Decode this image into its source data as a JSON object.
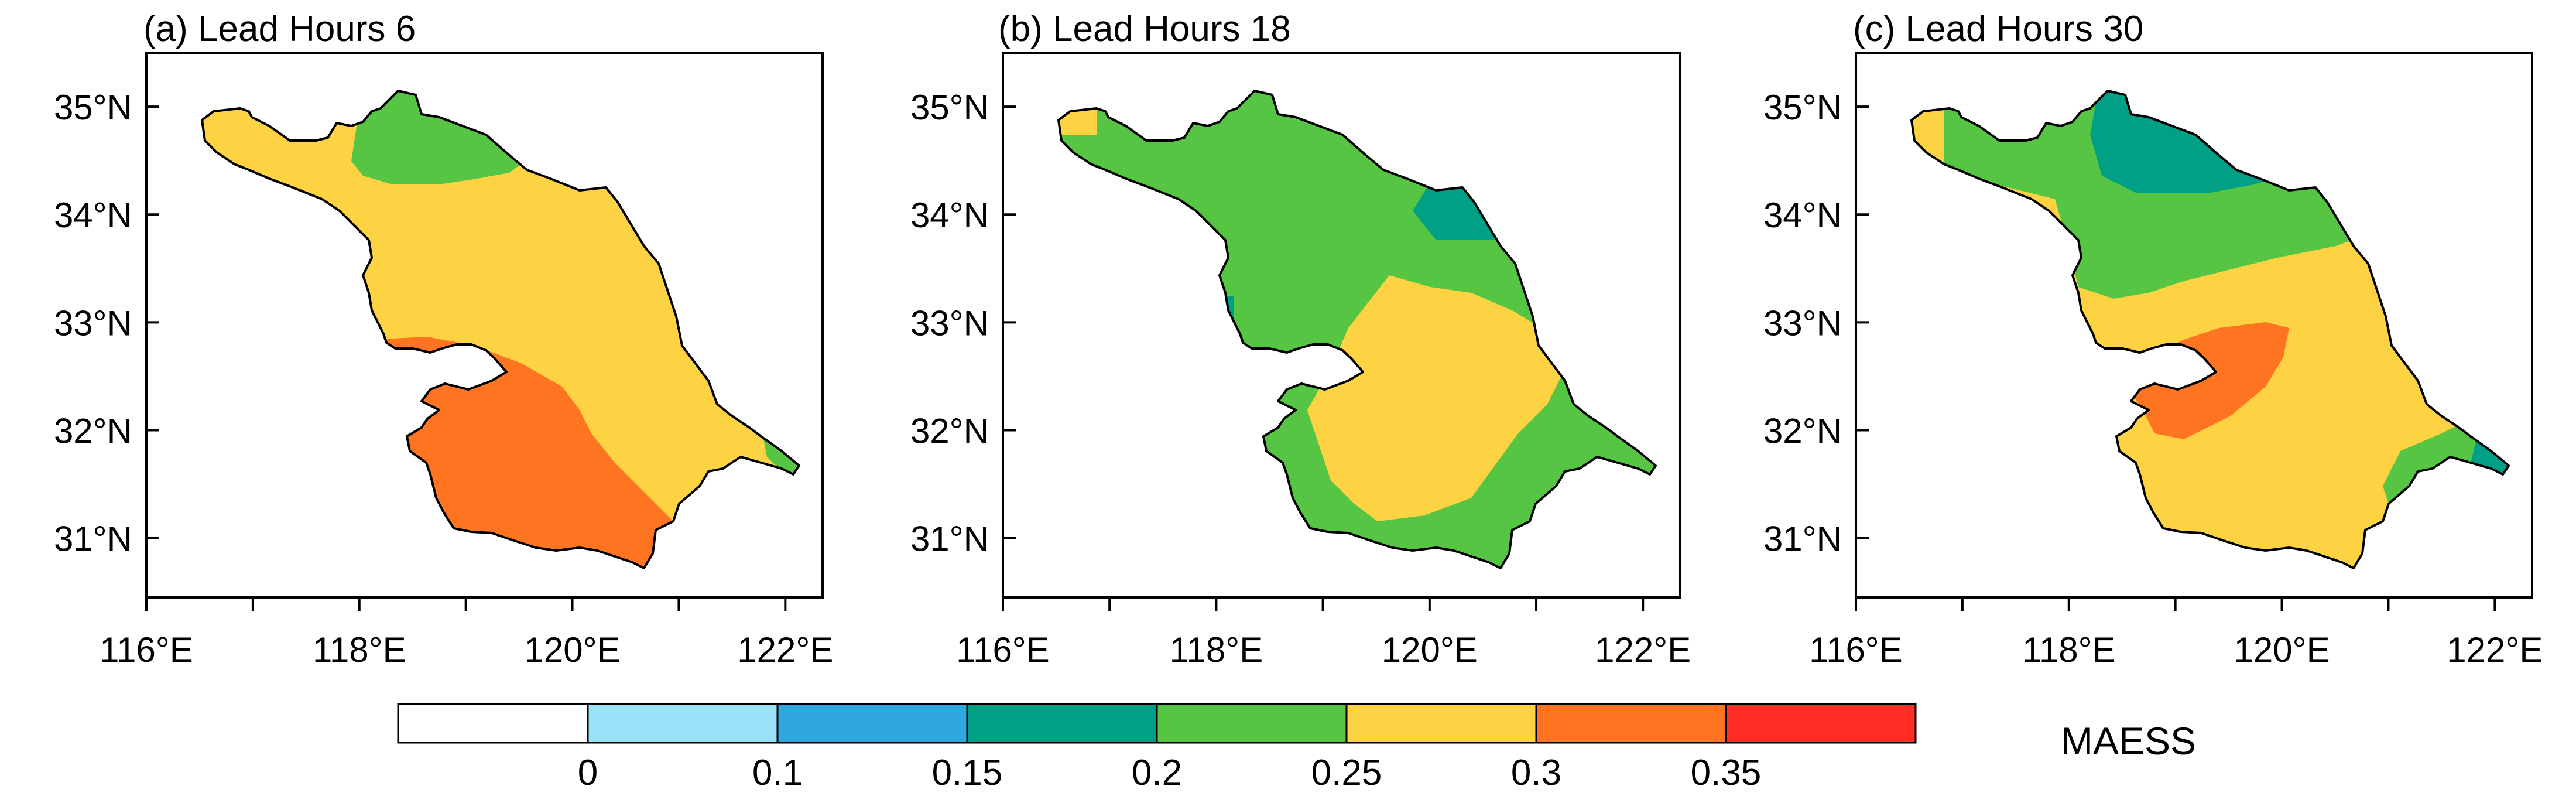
{
  "panels": [
    {
      "id": "a",
      "title": "(a) Lead Hours 6"
    },
    {
      "id": "b",
      "title": "(b) Lead Hours 18"
    },
    {
      "id": "c",
      "title": "(c) Lead Hours 30"
    }
  ],
  "axes": {
    "lat_ticks": [
      {
        "value": 35,
        "label": "35°N"
      },
      {
        "value": 34,
        "label": "34°N"
      },
      {
        "value": 33,
        "label": "33°N"
      },
      {
        "value": 32,
        "label": "32°N"
      },
      {
        "value": 31,
        "label": "31°N"
      }
    ],
    "lon_ticks": [
      {
        "value": 116,
        "label": "116°E"
      },
      {
        "value": 118,
        "label": "118°E"
      },
      {
        "value": 120,
        "label": "120°E"
      },
      {
        "value": 122,
        "label": "122°E"
      }
    ],
    "lon_minor_ticks": [
      117,
      119,
      121
    ]
  },
  "colorbar": {
    "title": "MAESS",
    "boundary_labels": [
      "0",
      "0.1",
      "0.15",
      "0.2",
      "0.25",
      "0.3",
      "0.35"
    ],
    "colors": [
      "#ffffff",
      "#9be1f8",
      "#2ea8de",
      "#00a087",
      "#57c544",
      "#fdd343",
      "#ff7420",
      "#ff2d22"
    ]
  },
  "map_colors": {
    "yellow": "#fdd343",
    "green": "#57c544",
    "teal": "#00a087",
    "orange": "#ff7420",
    "blue": "#2ea8de"
  }
}
